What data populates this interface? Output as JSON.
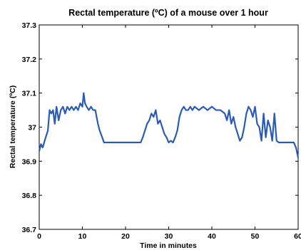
{
  "chart_data": {
    "type": "line",
    "title": "Rectal temperature (ºC) of a mouse over 1 hour",
    "xlabel": "Time in minutes",
    "ylabel": "Rectal temperature (ºC)",
    "xlim": [
      0,
      60
    ],
    "ylim": [
      36.7,
      37.3
    ],
    "xticks": [
      0,
      10,
      20,
      30,
      40,
      50,
      60
    ],
    "yticks": [
      36.7,
      36.8,
      36.9,
      37.0,
      37.1,
      37.2,
      37.3
    ],
    "xtick_labels": [
      "0",
      "10",
      "20",
      "30",
      "40",
      "50",
      "60"
    ],
    "ytick_labels": [
      "36.7",
      "36.8",
      "36.9",
      "37",
      "37.1",
      "37.2",
      "37.3"
    ],
    "grid": false,
    "color": "#2a5bb5",
    "series": [
      {
        "x": [
          0,
          0.4,
          0.8,
          1.5,
          2.0,
          2.4,
          2.8,
          3.2,
          3.6,
          4.0,
          4.5,
          5.0,
          5.5,
          6.0,
          6.5,
          7.0,
          7.5,
          8.0,
          8.5,
          9.0,
          9.5,
          10.0,
          10.3,
          10.6,
          11.0,
          11.5,
          12.0,
          12.5,
          13.0,
          13.3,
          13.6,
          14.0,
          14.3,
          14.6,
          15.0,
          16.0,
          18.0,
          20.0,
          22.0,
          23.5,
          24.0,
          24.5,
          25.0,
          25.5,
          26.0,
          26.5,
          27.0,
          27.5,
          28.0,
          28.5,
          29.0,
          29.5,
          30.0,
          30.5,
          31.0,
          31.5,
          32.0,
          32.5,
          33.0,
          33.5,
          34.0,
          34.5,
          35.0,
          35.5,
          36.0,
          37.0,
          38.0,
          39.0,
          40.0,
          41.0,
          42.0,
          43.0,
          43.5,
          44.0,
          44.5,
          45.0,
          45.5,
          46.0,
          46.5,
          47.0,
          47.5,
          48.0,
          48.5,
          49.0,
          49.5,
          50.0,
          50.5,
          51.0,
          51.5,
          52.0,
          52.5,
          53.0,
          53.5,
          54.0,
          54.5,
          55.0,
          55.5,
          56.0,
          57.0,
          58.0,
          59.0,
          59.5,
          60.0
        ],
        "y": [
          36.93,
          36.95,
          36.94,
          36.97,
          36.99,
          37.05,
          37.04,
          37.05,
          37.01,
          37.06,
          37.02,
          37.05,
          37.06,
          37.04,
          37.06,
          37.05,
          37.06,
          37.05,
          37.06,
          37.05,
          37.07,
          37.06,
          37.1,
          37.07,
          37.06,
          37.05,
          37.06,
          37.05,
          37.05,
          37.03,
          37.01,
          36.99,
          36.98,
          36.97,
          36.955,
          36.955,
          36.955,
          36.955,
          36.955,
          36.955,
          36.97,
          36.99,
          37.01,
          37.02,
          37.04,
          37.03,
          37.05,
          37.01,
          37.02,
          37.0,
          36.98,
          36.97,
          36.955,
          36.96,
          36.955,
          36.97,
          36.99,
          37.03,
          37.05,
          37.06,
          37.05,
          37.05,
          37.06,
          37.05,
          37.06,
          37.05,
          37.06,
          37.05,
          37.06,
          37.05,
          37.05,
          37.04,
          37.02,
          37.05,
          37.01,
          37.03,
          37.0,
          36.98,
          36.96,
          36.97,
          37.0,
          37.04,
          37.06,
          37.05,
          37.03,
          37.06,
          37.01,
          37.0,
          36.96,
          37.04,
          36.97,
          37.02,
          37.0,
          36.96,
          37.04,
          36.96,
          36.955,
          36.955,
          36.955,
          36.955,
          36.955,
          36.94,
          36.91
        ]
      }
    ]
  }
}
